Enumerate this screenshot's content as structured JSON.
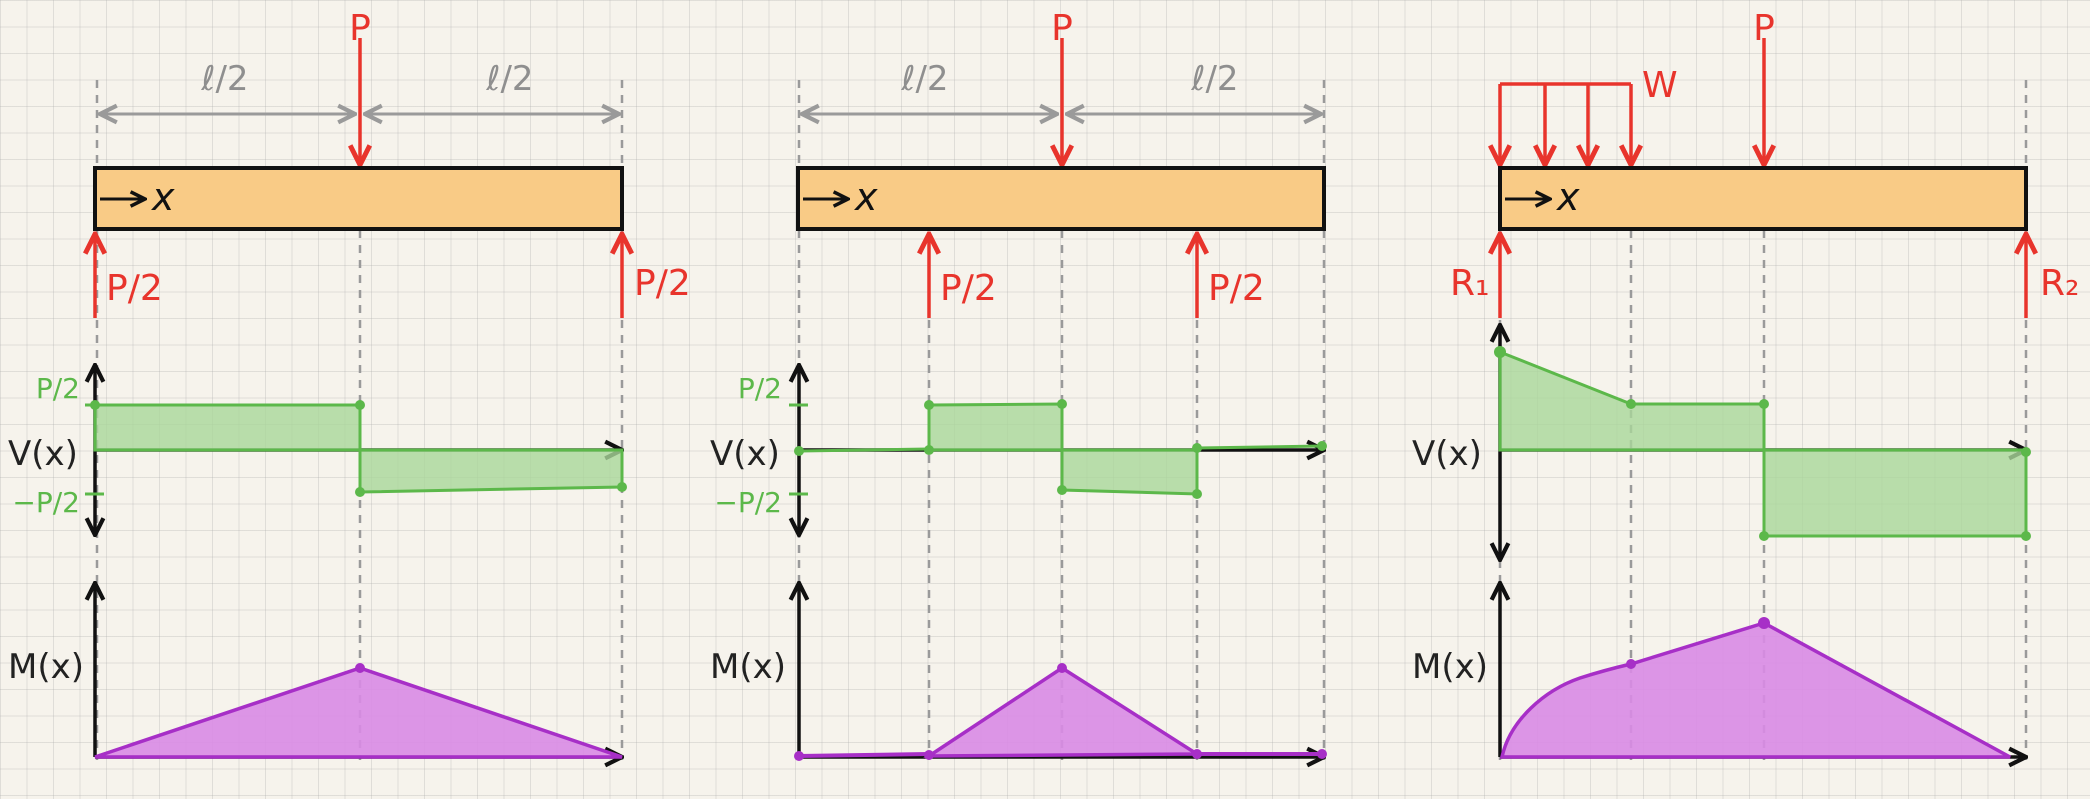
{
  "panels": [
    {
      "load_label": "P",
      "span_labels": [
        "ℓ/2",
        "ℓ/2"
      ],
      "beam_x_label": "x",
      "reactions": [
        "P/2",
        "P/2"
      ],
      "shear_label": "V(x)",
      "shear_ticks": [
        "P/2",
        "−P/2"
      ],
      "moment_label": "M(x)"
    },
    {
      "load_label": "P",
      "span_labels": [
        "ℓ/2",
        "ℓ/2"
      ],
      "beam_x_label": "x",
      "reactions": [
        "P/2",
        "P/2"
      ],
      "shear_label": "V(x)",
      "shear_ticks": [
        "P/2",
        "−P/2"
      ],
      "moment_label": "M(x)"
    },
    {
      "load_label": "P",
      "dist_load_label": "W",
      "beam_x_label": "x",
      "reactions": [
        "R₁",
        "R₂"
      ],
      "shear_label": "V(x)",
      "moment_label": "M(x)"
    }
  ],
  "colors": {
    "beam": "#f9cb86",
    "load": "#e8342c",
    "shear": "#5cb84a",
    "shear_fill": "#a9d79a",
    "moment": "#a72fc7",
    "moment_fill": "#d98be6",
    "dimension": "#9a9a9a"
  }
}
